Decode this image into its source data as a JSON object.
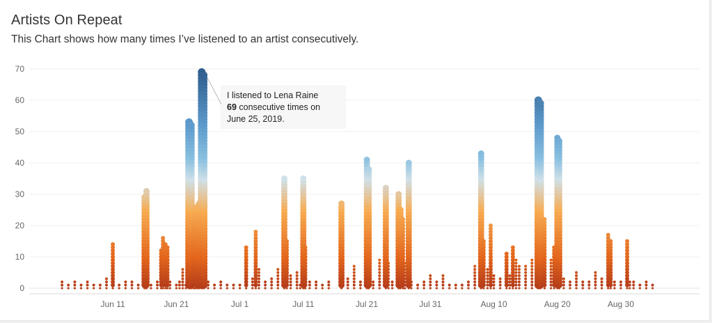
{
  "header": {
    "title": "Artists On Repeat",
    "subtitle": "This Chart shows how many times I’ve listened to an artist consecutively."
  },
  "tooltip": {
    "line1": "I listened to Lena Raine",
    "count": "69",
    "line2_rest": " consecutive times on",
    "line3": "June 25, 2019."
  },
  "chart_data": {
    "type": "scatter",
    "title": "Artists On Repeat",
    "subtitle": "This Chart shows how many times I’ve listened to an artist consecutively.",
    "xlabel": "",
    "ylabel": "",
    "x_range": [
      "2019-06-02",
      "2019-09-07"
    ],
    "ylim": [
      0,
      72
    ],
    "y_ticks": [
      0,
      10,
      20,
      30,
      40,
      50,
      60,
      70
    ],
    "x_ticks": [
      {
        "date": "2019-06-11",
        "label": "Jun 11"
      },
      {
        "date": "2019-06-21",
        "label": "Jun 21"
      },
      {
        "date": "2019-07-01",
        "label": "Jul 1"
      },
      {
        "date": "2019-07-11",
        "label": "Jul 11"
      },
      {
        "date": "2019-07-21",
        "label": "Jul 21"
      },
      {
        "date": "2019-07-31",
        "label": "Jul 31"
      },
      {
        "date": "2019-08-10",
        "label": "Aug 10"
      },
      {
        "date": "2019-08-20",
        "label": "Aug 20"
      },
      {
        "date": "2019-08-30",
        "label": "Aug 30"
      }
    ],
    "grid": true,
    "color_scale": [
      "#b23a1a",
      "#e3661c",
      "#f7ac52",
      "#cfe0e8",
      "#88bfe0",
      "#5f9ccd",
      "#2f5f8f"
    ],
    "streaks": [
      {
        "date": "2019-06-03",
        "max": 2
      },
      {
        "date": "2019-06-04",
        "max": 1
      },
      {
        "date": "2019-06-05",
        "max": 2
      },
      {
        "date": "2019-06-06",
        "max": 1
      },
      {
        "date": "2019-06-07",
        "max": 2
      },
      {
        "date": "2019-06-08",
        "max": 1
      },
      {
        "date": "2019-06-09",
        "max": 1
      },
      {
        "date": "2019-06-10",
        "max": 3
      },
      {
        "date": "2019-06-11",
        "max": 14
      },
      {
        "date": "2019-06-12",
        "max": 1
      },
      {
        "date": "2019-06-13",
        "max": 2
      },
      {
        "date": "2019-06-14",
        "max": 2
      },
      {
        "date": "2019-06-15",
        "max": 1
      },
      {
        "date": "2019-06-16",
        "max": 29
      },
      {
        "date": "2019-06-16.3",
        "max": 31
      },
      {
        "date": "2019-06-17",
        "max": 1
      },
      {
        "date": "2019-06-18",
        "max": 2
      },
      {
        "date": "2019-06-18.6",
        "max": 12
      },
      {
        "date": "2019-06-18.9",
        "max": 16
      },
      {
        "date": "2019-06-19.3",
        "max": 14
      },
      {
        "date": "2019-06-19.6",
        "max": 13
      },
      {
        "date": "2019-06-20",
        "max": 2
      },
      {
        "date": "2019-06-21",
        "max": 1
      },
      {
        "date": "2019-06-21.5",
        "max": 2
      },
      {
        "date": "2019-06-22",
        "max": 6
      },
      {
        "date": "2019-06-22.5",
        "max": 1
      },
      {
        "date": "2019-06-23",
        "max": 53
      },
      {
        "date": "2019-06-23.3",
        "max": 52
      },
      {
        "date": "2019-06-23.7",
        "max": 21
      },
      {
        "date": "2019-06-24",
        "max": 20
      },
      {
        "date": "2019-06-24.3",
        "max": 26
      },
      {
        "date": "2019-06-24.6",
        "max": 27
      },
      {
        "date": "2019-06-25",
        "max": 69
      },
      {
        "date": "2019-06-25.3",
        "max": 68
      },
      {
        "date": "2019-06-26",
        "max": 2
      },
      {
        "date": "2019-06-27",
        "max": 1
      },
      {
        "date": "2019-06-28",
        "max": 2
      },
      {
        "date": "2019-06-29",
        "max": 1
      },
      {
        "date": "2019-06-30",
        "max": 1
      },
      {
        "date": "2019-07-01",
        "max": 1
      },
      {
        "date": "2019-07-02",
        "max": 13
      },
      {
        "date": "2019-07-03",
        "max": 3
      },
      {
        "date": "2019-07-03.5",
        "max": 18
      },
      {
        "date": "2019-07-04",
        "max": 6
      },
      {
        "date": "2019-07-05",
        "max": 2
      },
      {
        "date": "2019-07-06",
        "max": 3
      },
      {
        "date": "2019-07-07",
        "max": 6
      },
      {
        "date": "2019-07-08",
        "max": 35
      },
      {
        "date": "2019-07-08.4",
        "max": 15
      },
      {
        "date": "2019-07-09",
        "max": 4
      },
      {
        "date": "2019-07-10",
        "max": 5
      },
      {
        "date": "2019-07-10.5",
        "max": 1
      },
      {
        "date": "2019-07-11",
        "max": 35
      },
      {
        "date": "2019-07-11.3",
        "max": 13
      },
      {
        "date": "2019-07-12",
        "max": 2
      },
      {
        "date": "2019-07-13",
        "max": 2
      },
      {
        "date": "2019-07-14",
        "max": 1
      },
      {
        "date": "2019-07-15",
        "max": 2
      },
      {
        "date": "2019-07-17",
        "max": 27
      },
      {
        "date": "2019-07-18",
        "max": 3
      },
      {
        "date": "2019-07-19",
        "max": 7
      },
      {
        "date": "2019-07-20",
        "max": 2
      },
      {
        "date": "2019-07-21",
        "max": 41
      },
      {
        "date": "2019-07-21.3",
        "max": 38
      },
      {
        "date": "2019-07-22",
        "max": 2
      },
      {
        "date": "2019-07-23",
        "max": 9
      },
      {
        "date": "2019-07-24",
        "max": 32
      },
      {
        "date": "2019-07-24.4",
        "max": 8
      },
      {
        "date": "2019-07-25",
        "max": 2
      },
      {
        "date": "2019-07-26",
        "max": 30
      },
      {
        "date": "2019-07-26.3",
        "max": 25
      },
      {
        "date": "2019-07-26.7",
        "max": 22
      },
      {
        "date": "2019-07-27",
        "max": 8
      },
      {
        "date": "2019-07-27.6",
        "max": 40
      },
      {
        "date": "2019-07-28",
        "max": 2
      },
      {
        "date": "2019-07-29",
        "max": 1
      },
      {
        "date": "2019-07-30",
        "max": 2
      },
      {
        "date": "2019-07-31",
        "max": 4
      },
      {
        "date": "2019-08-01",
        "max": 2
      },
      {
        "date": "2019-08-02",
        "max": 4
      },
      {
        "date": "2019-08-03",
        "max": 1
      },
      {
        "date": "2019-08-04",
        "max": 1
      },
      {
        "date": "2019-08-05",
        "max": 1
      },
      {
        "date": "2019-08-06",
        "max": 2
      },
      {
        "date": "2019-08-07",
        "max": 7
      },
      {
        "date": "2019-08-08",
        "max": 43
      },
      {
        "date": "2019-08-08.4",
        "max": 15
      },
      {
        "date": "2019-08-09",
        "max": 6
      },
      {
        "date": "2019-08-09.5",
        "max": 20
      },
      {
        "date": "2019-08-10",
        "max": 4
      },
      {
        "date": "2019-08-11",
        "max": 3
      },
      {
        "date": "2019-08-12",
        "max": 11
      },
      {
        "date": "2019-08-12.5",
        "max": 4
      },
      {
        "date": "2019-08-13",
        "max": 13
      },
      {
        "date": "2019-08-13.5",
        "max": 9
      },
      {
        "date": "2019-08-14",
        "max": 7
      },
      {
        "date": "2019-08-15",
        "max": 7
      },
      {
        "date": "2019-08-16",
        "max": 9
      },
      {
        "date": "2019-08-17",
        "max": 60
      },
      {
        "date": "2019-08-17.3",
        "max": 59
      },
      {
        "date": "2019-08-18",
        "max": 22
      },
      {
        "date": "2019-08-19",
        "max": 9
      },
      {
        "date": "2019-08-19.5",
        "max": 13
      },
      {
        "date": "2019-08-20",
        "max": 48
      },
      {
        "date": "2019-08-20.3",
        "max": 47
      },
      {
        "date": "2019-08-21",
        "max": 3
      },
      {
        "date": "2019-08-22",
        "max": 2
      },
      {
        "date": "2019-08-23",
        "max": 5
      },
      {
        "date": "2019-08-24",
        "max": 2
      },
      {
        "date": "2019-08-25",
        "max": 2
      },
      {
        "date": "2019-08-26",
        "max": 5
      },
      {
        "date": "2019-08-27",
        "max": 3
      },
      {
        "date": "2019-08-28",
        "max": 17
      },
      {
        "date": "2019-08-28.4",
        "max": 15
      },
      {
        "date": "2019-08-29",
        "max": 2
      },
      {
        "date": "2019-08-30",
        "max": 2
      },
      {
        "date": "2019-08-31",
        "max": 15
      },
      {
        "date": "2019-08-31.4",
        "max": 2
      },
      {
        "date": "2019-09-01",
        "max": 2
      },
      {
        "date": "2019-09-02",
        "max": 1
      },
      {
        "date": "2019-09-03",
        "max": 2
      },
      {
        "date": "2019-09-04",
        "max": 1
      }
    ],
    "annotation": {
      "date": "2019-06-25",
      "value": 69,
      "text": "I listened to Lena Raine 69 consecutive times on June 25, 2019."
    }
  }
}
